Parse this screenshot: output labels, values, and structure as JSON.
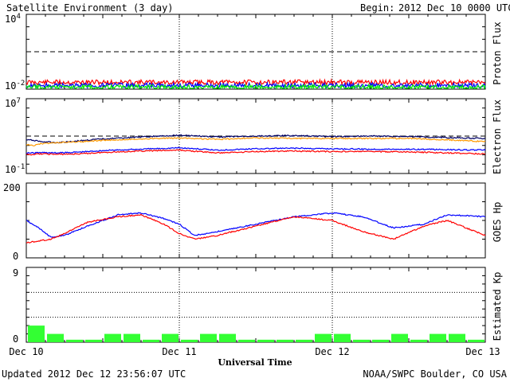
{
  "header": {
    "title": "Satellite Environment (3 day)",
    "begin_label": "Begin:",
    "begin_value": "2012 Dec 10 0000 UTC"
  },
  "footer": {
    "updated": "Updated 2012 Dec 12 23:56:07 UTC",
    "credit": "NOAA/SWPC Boulder, CO USA"
  },
  "x_axis": {
    "label": "Universal Time",
    "ticks": [
      "Dec 10",
      "Dec 11",
      "Dec 12",
      "Dec 13"
    ]
  },
  "colors": {
    "red": "#ff0000",
    "blue": "#0000ff",
    "green": "#00ee00",
    "orange": "#ff9900",
    "navy": "#000066",
    "kp_bar": "#33ff33"
  },
  "chart_data": [
    {
      "type": "line",
      "name": "proton",
      "ylabel": "Proton Flux",
      "ytick_labels": [
        {
          "base": "10",
          "exp": "4",
          "value": 4
        },
        {
          "base": "10",
          "exp": "-2",
          "value": -2
        }
      ],
      "scale": "log",
      "ylim_log10": [
        -2,
        4
      ],
      "threshold_log10": 1,
      "x_days": [
        0,
        0.25,
        0.5,
        0.75,
        1,
        1.25,
        1.5,
        1.75,
        2,
        2.25,
        2.5,
        2.75,
        3
      ],
      "series": [
        {
          "color_key": "red",
          "log_values": [
            -1.45,
            -1.45,
            -1.45,
            -1.45,
            -1.45,
            -1.45,
            -1.45,
            -1.45,
            -1.45,
            -1.45,
            -1.45,
            -1.45,
            -1.45
          ]
        },
        {
          "color_key": "blue",
          "log_values": [
            -1.7,
            -1.7,
            -1.7,
            -1.7,
            -1.7,
            -1.7,
            -1.7,
            -1.7,
            -1.7,
            -1.7,
            -1.7,
            -1.7,
            -1.7
          ]
        },
        {
          "color_key": "green",
          "log_values": [
            -1.85,
            -1.85,
            -1.85,
            -1.85,
            -1.85,
            -1.85,
            -1.85,
            -1.85,
            -1.85,
            -1.85,
            -1.85,
            -1.85,
            -1.85
          ]
        }
      ]
    },
    {
      "type": "line",
      "name": "electron",
      "ylabel": "Electron Flux",
      "ytick_labels": [
        {
          "base": "10",
          "exp": "7",
          "value": 7
        },
        {
          "base": "10",
          "exp": "-1",
          "value": -1
        }
      ],
      "scale": "log",
      "ylim_log10": [
        -1,
        7
      ],
      "threshold_log10": 3,
      "x_days": [
        0,
        0.05,
        0.1,
        0.2,
        0.35,
        0.5,
        0.75,
        1,
        1.25,
        1.5,
        1.75,
        2,
        2.25,
        2.5,
        2.75,
        3
      ],
      "series": [
        {
          "color_key": "navy",
          "log_values": [
            2.6,
            2.55,
            2.4,
            2.3,
            2.5,
            2.7,
            2.9,
            3.1,
            2.9,
            3.0,
            3.05,
            2.95,
            3.0,
            2.95,
            2.85,
            2.75
          ]
        },
        {
          "color_key": "orange",
          "log_values": [
            2.1,
            2.0,
            2.2,
            2.3,
            2.4,
            2.55,
            2.7,
            2.8,
            2.65,
            2.8,
            2.75,
            2.75,
            2.75,
            2.75,
            2.6,
            2.4
          ]
        },
        {
          "color_key": "blue",
          "log_values": [
            1.2,
            1.2,
            1.25,
            1.2,
            1.3,
            1.45,
            1.6,
            1.75,
            1.5,
            1.65,
            1.7,
            1.65,
            1.6,
            1.6,
            1.55,
            1.5
          ]
        },
        {
          "color_key": "red",
          "log_values": [
            1.0,
            1.05,
            1.1,
            1.05,
            1.1,
            1.25,
            1.4,
            1.5,
            1.2,
            1.35,
            1.4,
            1.35,
            1.35,
            1.3,
            1.2,
            1.1
          ]
        }
      ]
    },
    {
      "type": "line",
      "name": "goes_hp",
      "ylabel": "GOES Hp",
      "ytick_labels": [
        {
          "base": "200",
          "exp": "",
          "value": 200
        },
        {
          "base": "0",
          "exp": "",
          "value": 0
        }
      ],
      "ylim": [
        0,
        200
      ],
      "x_days": [
        0,
        0.08,
        0.16,
        0.25,
        0.4,
        0.6,
        0.75,
        0.9,
        1.0,
        1.1,
        1.25,
        1.5,
        1.75,
        2.0,
        2.2,
        2.4,
        2.6,
        2.75,
        3.0
      ],
      "series": [
        {
          "color_key": "blue",
          "values": [
            100,
            80,
            55,
            60,
            85,
            115,
            120,
            105,
            90,
            60,
            70,
            90,
            110,
            120,
            110,
            80,
            90,
            115,
            110
          ]
        },
        {
          "color_key": "red",
          "values": [
            40,
            45,
            50,
            65,
            95,
            110,
            115,
            90,
            65,
            50,
            60,
            85,
            110,
            100,
            70,
            50,
            85,
            100,
            60
          ]
        }
      ]
    },
    {
      "type": "bar",
      "name": "kp",
      "ylabel": "Estimated Kp",
      "ytick_labels": [
        {
          "base": "9",
          "exp": "",
          "value": 9
        },
        {
          "base": "0",
          "exp": "",
          "value": 0
        }
      ],
      "ylim": [
        0,
        9
      ],
      "gridlines": [
        3,
        6,
        9
      ],
      "bin_hours": 3,
      "values": [
        2,
        1,
        0.3,
        0.3,
        1,
        1,
        0.3,
        1,
        0.3,
        1,
        1,
        0.3,
        0.3,
        0.3,
        0.3,
        1,
        1,
        0.3,
        0.3,
        1,
        0.3,
        1,
        1,
        0.3
      ]
    }
  ]
}
